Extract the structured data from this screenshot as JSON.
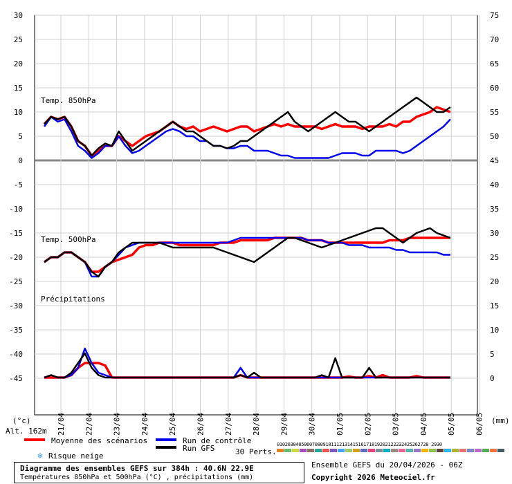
{
  "chart_data": {
    "type": "line",
    "title": "Diagramme des ensembles GEFS sur 384h : 40.6N 22.9E",
    "subtitle": "Températures 850hPa et 500hPa (°C) , précipitations (mm)",
    "left_unit": "(°c)",
    "right_unit": "(mm)",
    "altitude": "Alt. 162m",
    "left_ticks": [
      30,
      25,
      20,
      15,
      10,
      5,
      0,
      -5,
      -10,
      -15,
      -20,
      -25,
      -30,
      -35,
      -40,
      -45
    ],
    "right_ticks": [
      75,
      70,
      65,
      60,
      55,
      50,
      45,
      40,
      35,
      30,
      25,
      20,
      15,
      10,
      5,
      0
    ],
    "x_labels": [
      "21/04",
      "22/04",
      "23/04",
      "24/04",
      "25/04",
      "26/04",
      "27/04",
      "28/04",
      "29/04",
      "30/04",
      "01/05",
      "02/05",
      "03/05",
      "04/05",
      "05/05",
      "06/05"
    ],
    "panel_labels": {
      "t850": "Temp. 850hPa",
      "t500": "Temp. 500hPa",
      "precip": "Précipitations"
    },
    "step_hours": 6,
    "start_hour": 6,
    "series": [
      {
        "name": "Moyenne des scénarios",
        "color": "#ff0000",
        "panel": "t850",
        "values": [
          7.5,
          9,
          8.5,
          9,
          7,
          4,
          3,
          1,
          2,
          3,
          3,
          5,
          4,
          3,
          4,
          5,
          5.5,
          6,
          7,
          8,
          7,
          6.5,
          7,
          6,
          6.5,
          7,
          6.5,
          6,
          6.5,
          7,
          7,
          6,
          6.5,
          7,
          7.5,
          7,
          7.5,
          7,
          7,
          7,
          7,
          6.5,
          7,
          7.5,
          7,
          7,
          7,
          6.5,
          7,
          7,
          7,
          7.5,
          7,
          8,
          8,
          9,
          9.5,
          10,
          11,
          10.5,
          10
        ]
      },
      {
        "name": "Run de contrôle",
        "color": "#0000ee",
        "panel": "t850",
        "values": [
          7,
          9,
          8,
          8.5,
          6,
          3,
          2,
          0.5,
          1.5,
          3,
          3,
          5,
          3,
          1.5,
          2,
          3,
          4,
          5,
          6,
          6.5,
          6,
          5,
          5,
          4,
          4,
          3,
          3,
          2.5,
          2.5,
          3,
          3,
          2,
          2,
          2,
          1.5,
          1,
          1,
          0.5,
          0.5,
          0.5,
          0.5,
          0.5,
          0.5,
          1,
          1.5,
          1.5,
          1.5,
          1,
          1,
          2,
          2,
          2,
          2,
          1.5,
          2,
          3,
          4,
          5,
          6,
          7,
          8.5
        ]
      },
      {
        "name": "Run GFS",
        "color": "#000000",
        "panel": "t850",
        "values": [
          7.5,
          9,
          8.5,
          9,
          7,
          4,
          3,
          1,
          2.5,
          3.5,
          3,
          6,
          4,
          2,
          3,
          4,
          5,
          6,
          7,
          8,
          7,
          6,
          6,
          5,
          4,
          3,
          3,
          2.5,
          3,
          4,
          4,
          5,
          6,
          7,
          8,
          9,
          10,
          8,
          7,
          6,
          7,
          8,
          9,
          10,
          9,
          8,
          8,
          7,
          6,
          7,
          8,
          9,
          10,
          11,
          12,
          13,
          12,
          11,
          10,
          10,
          11
        ]
      },
      {
        "name": "Moyenne des scénarios",
        "color": "#ff0000",
        "panel": "t500",
        "values": [
          -21,
          -20,
          -20,
          -19,
          -19,
          -20,
          -21,
          -23,
          -23,
          -22,
          -21,
          -20.5,
          -20,
          -19.5,
          -18,
          -17.5,
          -17.5,
          -17,
          -17,
          -17,
          -17.5,
          -17.5,
          -17.5,
          -17.5,
          -17.5,
          -17.5,
          -17,
          -17,
          -17,
          -16.5,
          -16.5,
          -16.5,
          -16.5,
          -16.5,
          -16,
          -16,
          -16,
          -16,
          -16,
          -16.5,
          -16.5,
          -16.5,
          -17,
          -17,
          -17,
          -17,
          -17,
          -17,
          -17,
          -17,
          -17,
          -16.5,
          -16.5,
          -16.5,
          -16,
          -16,
          -16,
          -16,
          -16,
          -16,
          -16
        ]
      },
      {
        "name": "Run de contrôle",
        "color": "#0000ee",
        "panel": "t500",
        "values": [
          -21,
          -20,
          -20,
          -19,
          -19,
          -20,
          -21,
          -24,
          -24,
          -22,
          -21,
          -19.5,
          -18,
          -17.5,
          -17,
          -17,
          -17,
          -17,
          -17,
          -17,
          -17,
          -17,
          -17,
          -17,
          -17,
          -17,
          -17,
          -17,
          -16.5,
          -16,
          -16,
          -16,
          -16,
          -16,
          -16,
          -16,
          -16,
          -16,
          -16,
          -16.5,
          -16.5,
          -16.5,
          -17,
          -17,
          -17,
          -17.5,
          -17.5,
          -17.5,
          -18,
          -18,
          -18,
          -18,
          -18.5,
          -18.5,
          -19,
          -19,
          -19,
          -19,
          -19,
          -19.5,
          -19.5
        ]
      },
      {
        "name": "Run GFS",
        "color": "#000000",
        "panel": "t500",
        "values": [
          -21,
          -20,
          -20,
          -19,
          -19,
          -20,
          -21,
          -23,
          -24,
          -22,
          -21,
          -19,
          -18,
          -17,
          -17,
          -17,
          -17,
          -17,
          -17.5,
          -18,
          -18,
          -18,
          -18,
          -18,
          -18,
          -18,
          -18.5,
          -19,
          -19.5,
          -20,
          -20.5,
          -21,
          -20,
          -19,
          -18,
          -17,
          -16,
          -16,
          -16.5,
          -17,
          -17.5,
          -18,
          -17.5,
          -17,
          -16.5,
          -16,
          -15.5,
          -15,
          -14.5,
          -14,
          -14,
          -15,
          -16,
          -17,
          -16,
          -15,
          -14.5,
          -14,
          -15,
          -15.5,
          -16
        ]
      },
      {
        "name": "Moyenne des scénarios",
        "color": "#ff0000",
        "panel": "precip",
        "values": [
          0,
          0,
          0,
          0,
          0.5,
          2,
          3,
          3,
          3,
          2.5,
          0,
          0,
          0,
          0,
          0,
          0,
          0,
          0,
          0,
          0,
          0,
          0,
          0,
          0,
          0,
          0,
          0,
          0,
          0,
          0.5,
          0,
          0,
          0,
          0,
          0,
          0,
          0,
          0,
          0,
          0,
          0,
          0,
          0,
          0,
          0,
          0.2,
          0,
          0,
          0.3,
          0,
          0.5,
          0,
          0,
          0,
          0,
          0.3,
          0,
          0,
          0,
          0,
          0
        ]
      },
      {
        "name": "Run de contrôle",
        "color": "#0000ee",
        "panel": "precip",
        "values": [
          0,
          0.5,
          0,
          0,
          0.5,
          2,
          6,
          3,
          1,
          0.5,
          0,
          0,
          0,
          0,
          0,
          0,
          0,
          0,
          0,
          0,
          0,
          0,
          0,
          0,
          0,
          0,
          0,
          0,
          0,
          2,
          0,
          0,
          0,
          0,
          0,
          0,
          0,
          0,
          0,
          0,
          0,
          0,
          0,
          0,
          0,
          0,
          0,
          0,
          0,
          0,
          0,
          0,
          0,
          0,
          0,
          0,
          0,
          0,
          0,
          0,
          0
        ]
      },
      {
        "name": "Run GFS",
        "color": "#000000",
        "panel": "precip",
        "values": [
          0,
          0.5,
          0,
          0,
          1,
          3,
          5,
          2,
          0.5,
          0,
          0,
          0,
          0,
          0,
          0,
          0,
          0,
          0,
          0,
          0,
          0,
          0,
          0,
          0,
          0,
          0,
          0,
          0,
          0,
          0.5,
          0,
          1,
          0,
          0,
          0,
          0,
          0,
          0,
          0,
          0,
          0,
          0.5,
          0,
          4,
          0,
          0,
          0,
          0,
          2,
          0,
          0,
          0,
          0,
          0,
          0,
          0,
          0,
          0,
          0,
          0,
          0
        ]
      }
    ],
    "perturbation_palette": [
      "#e67e22",
      "#66bb6a",
      "#cddc39",
      "#ab47bc",
      "#8d6e63",
      "#26a69a",
      "#ef5350",
      "#7e57c2",
      "#42a5f5",
      "#9ccc65",
      "#d4a017",
      "#5c6bc0",
      "#ec407a",
      "#78909c",
      "#00acc1",
      "#a1887f",
      "#f06292",
      "#4db6ac",
      "#9575cd",
      "#ffb300",
      "#8bc34a",
      "#5d4037",
      "#29b6f6",
      "#afb42b",
      "#e57373",
      "#7986cb",
      "#ba68c8",
      "#4caf50",
      "#ff7043",
      "#455a64"
    ]
  },
  "legend": {
    "mean": "Moyenne des scénarios",
    "control": "Run de contrôle",
    "gfs": "Run GFS",
    "snow": "Risque neige",
    "perts": "30 Perts.",
    "pert_numbers": "01020304050607080910111213141516171819202122232425262728 2930"
  },
  "footer": {
    "title": "Diagramme des ensembles GEFS sur 384h : 40.6N 22.9E",
    "subtitle": "Températures 850hPa et 500hPa (°C) , précipitations (mm)",
    "run": "Ensemble GEFS du 20/04/2026 - 06Z",
    "copyright": "Copyright 2026 Meteociel.fr"
  }
}
